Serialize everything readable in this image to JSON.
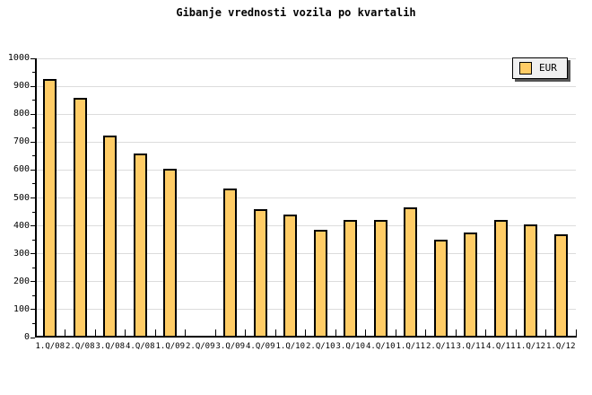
{
  "title": "Gibanje vrednosti vozila po kvartalih",
  "legend": {
    "label": "EUR",
    "position": "top-right"
  },
  "colors": {
    "background": "#FFFFFF",
    "bar_fill": "#FFCC66",
    "bar_border": "#000000",
    "grid": "#DCDCDC",
    "axis": "#000000",
    "legend_bg": "#F0F0F0",
    "legend_shadow": "#555555",
    "text": "#000000"
  },
  "chart_data": {
    "type": "bar",
    "title": "Gibanje vrednosti vozila po kvartalih",
    "categories": [
      "1.Q/08",
      "2.Q/08",
      "3.Q/08",
      "4.Q/08",
      "1.Q/09",
      "2.Q/09",
      "3.Q/09",
      "4.Q/09",
      "1.Q/10",
      "2.Q/10",
      "3.Q/10",
      "4.Q/10",
      "1.Q/11",
      "2.Q/11",
      "3.Q/11",
      "4.Q/11",
      "1.Q/12",
      "1.Q/12"
    ],
    "series": [
      {
        "name": "EUR",
        "values": [
          925,
          860,
          725,
          660,
          605,
          0,
          535,
          460,
          440,
          385,
          420,
          420,
          465,
          350,
          375,
          420,
          405,
          370
        ]
      }
    ],
    "xlabel": "",
    "ylabel": "",
    "ylim": [
      0,
      1000
    ],
    "yticks": [
      0,
      100,
      200,
      300,
      400,
      500,
      600,
      700,
      800,
      900,
      1000
    ],
    "ytick_minor_step": 50,
    "grid": "horizontal",
    "legend_position": "top-right"
  }
}
